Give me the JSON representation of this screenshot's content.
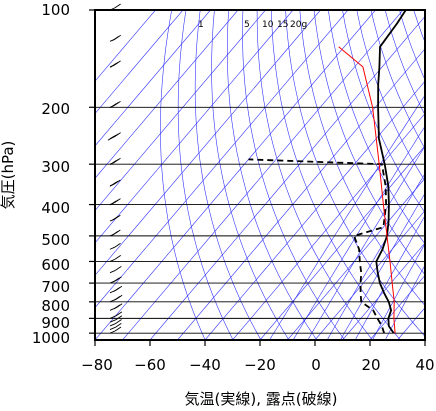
{
  "chart_data": {
    "type": "line",
    "subtype": "skew-t log-p sounding",
    "xlabel": "気温(実線), 露点(破線)",
    "ylabel": "気圧(hPa)",
    "x_ticks": [
      "−80",
      "−60",
      "−40",
      "−20",
      "0",
      "20",
      "40"
    ],
    "x_tick_values": [
      -80,
      -60,
      -40,
      -20,
      0,
      20,
      40
    ],
    "y_ticks": [
      "100",
      "200",
      "300",
      "400",
      "500",
      "600",
      "700",
      "800",
      "900",
      "1000"
    ],
    "y_tick_values": [
      100,
      200,
      300,
      400,
      500,
      600,
      700,
      800,
      900,
      1000
    ],
    "xlim": [
      -80,
      40
    ],
    "ylim": [
      1050,
      100
    ],
    "y_scale": "log",
    "mixing_ratio_labels": [
      "1",
      "5",
      "10",
      "15",
      "20g"
    ],
    "series": [
      {
        "role": "temperature",
        "style": "solid",
        "color": "#000000",
        "points": [
          {
            "p": 1000,
            "t": 26.5
          },
          {
            "p": 950,
            "t": 22.5
          },
          {
            "p": 900,
            "t": 20
          },
          {
            "p": 850,
            "t": 18.5
          },
          {
            "p": 800,
            "t": 15
          },
          {
            "p": 750,
            "t": 10.5
          },
          {
            "p": 700,
            "t": 6
          },
          {
            "p": 650,
            "t": 2
          },
          {
            "p": 600,
            "t": -2
          },
          {
            "p": 550,
            "t": -3.5
          },
          {
            "p": 500,
            "t": -6
          },
          {
            "p": 450,
            "t": -10
          },
          {
            "p": 400,
            "t": -15
          },
          {
            "p": 350,
            "t": -21
          },
          {
            "p": 300,
            "t": -29
          },
          {
            "p": 250,
            "t": -39
          },
          {
            "p": 200,
            "t": -49
          },
          {
            "p": 170,
            "t": -56
          },
          {
            "p": 150,
            "t": -61
          },
          {
            "p": 130,
            "t": -67
          },
          {
            "p": 110,
            "t": -68
          },
          {
            "p": 100,
            "t": -69
          }
        ]
      },
      {
        "role": "dewpoint",
        "style": "dashed",
        "color": "#000000",
        "points": [
          {
            "p": 1000,
            "t": 23
          },
          {
            "p": 950,
            "t": 20
          },
          {
            "p": 900,
            "t": 16
          },
          {
            "p": 850,
            "t": 12
          },
          {
            "p": 800,
            "t": 5
          },
          {
            "p": 750,
            "t": 2
          },
          {
            "p": 700,
            "t": -1
          },
          {
            "p": 650,
            "t": -4
          },
          {
            "p": 600,
            "t": -8
          },
          {
            "p": 550,
            "t": -12
          },
          {
            "p": 500,
            "t": -18
          },
          {
            "p": 470,
            "t": -10
          },
          {
            "p": 400,
            "t": -16
          },
          {
            "p": 350,
            "t": -22
          },
          {
            "p": 300,
            "t": -30
          },
          {
            "p": 290,
            "t": -80
          }
        ]
      },
      {
        "role": "parcel",
        "style": "solid",
        "color": "#ff0000",
        "points": [
          {
            "p": 1000,
            "t": 27
          },
          {
            "p": 900,
            "t": 22
          },
          {
            "p": 800,
            "t": 17
          },
          {
            "p": 700,
            "t": 10.5
          },
          {
            "p": 600,
            "t": 3
          },
          {
            "p": 500,
            "t": -6
          },
          {
            "p": 400,
            "t": -17
          },
          {
            "p": 300,
            "t": -31
          },
          {
            "p": 200,
            "t": -51
          },
          {
            "p": 150,
            "t": -67
          },
          {
            "p": 130,
            "t": -82
          }
        ]
      }
    ],
    "wind_barbs": [
      {
        "p": 1000,
        "u": 3,
        "v": 6
      },
      {
        "p": 975,
        "u": 2,
        "v": 8
      },
      {
        "p": 950,
        "u": 3,
        "v": 10
      },
      {
        "p": 925,
        "u": 3,
        "v": 12
      },
      {
        "p": 900,
        "u": 5,
        "v": 12
      },
      {
        "p": 850,
        "u": 6,
        "v": 14
      },
      {
        "p": 800,
        "u": 8,
        "v": 14
      },
      {
        "p": 750,
        "u": 8,
        "v": 12
      },
      {
        "p": 700,
        "u": 6,
        "v": 10
      },
      {
        "p": 650,
        "u": 5,
        "v": 8
      },
      {
        "p": 600,
        "u": 3,
        "v": 4
      },
      {
        "p": 550,
        "u": 3,
        "v": 2
      },
      {
        "p": 500,
        "u": 6,
        "v": 1
      },
      {
        "p": 450,
        "u": 8,
        "v": 1
      },
      {
        "p": 400,
        "u": 10,
        "v": 2
      },
      {
        "p": 350,
        "u": 10,
        "v": 1
      },
      {
        "p": 300,
        "u": 12,
        "v": 2
      },
      {
        "p": 250,
        "u": 14,
        "v": 3
      },
      {
        "p": 200,
        "u": 12,
        "v": 2
      },
      {
        "p": 150,
        "u": 10,
        "v": 3
      },
      {
        "p": 125,
        "u": 8,
        "v": 4
      },
      {
        "p": 100,
        "u": 5,
        "v": 3
      }
    ],
    "grid": true,
    "legend": "none"
  },
  "colors": {
    "frame": "#000000",
    "gridline": "#000000",
    "dry_adiabat": "#3333ff",
    "mixing_ratio": "#3333ff",
    "temperature": "#000000",
    "dewpoint": "#000000",
    "parcel": "#ff0000"
  }
}
